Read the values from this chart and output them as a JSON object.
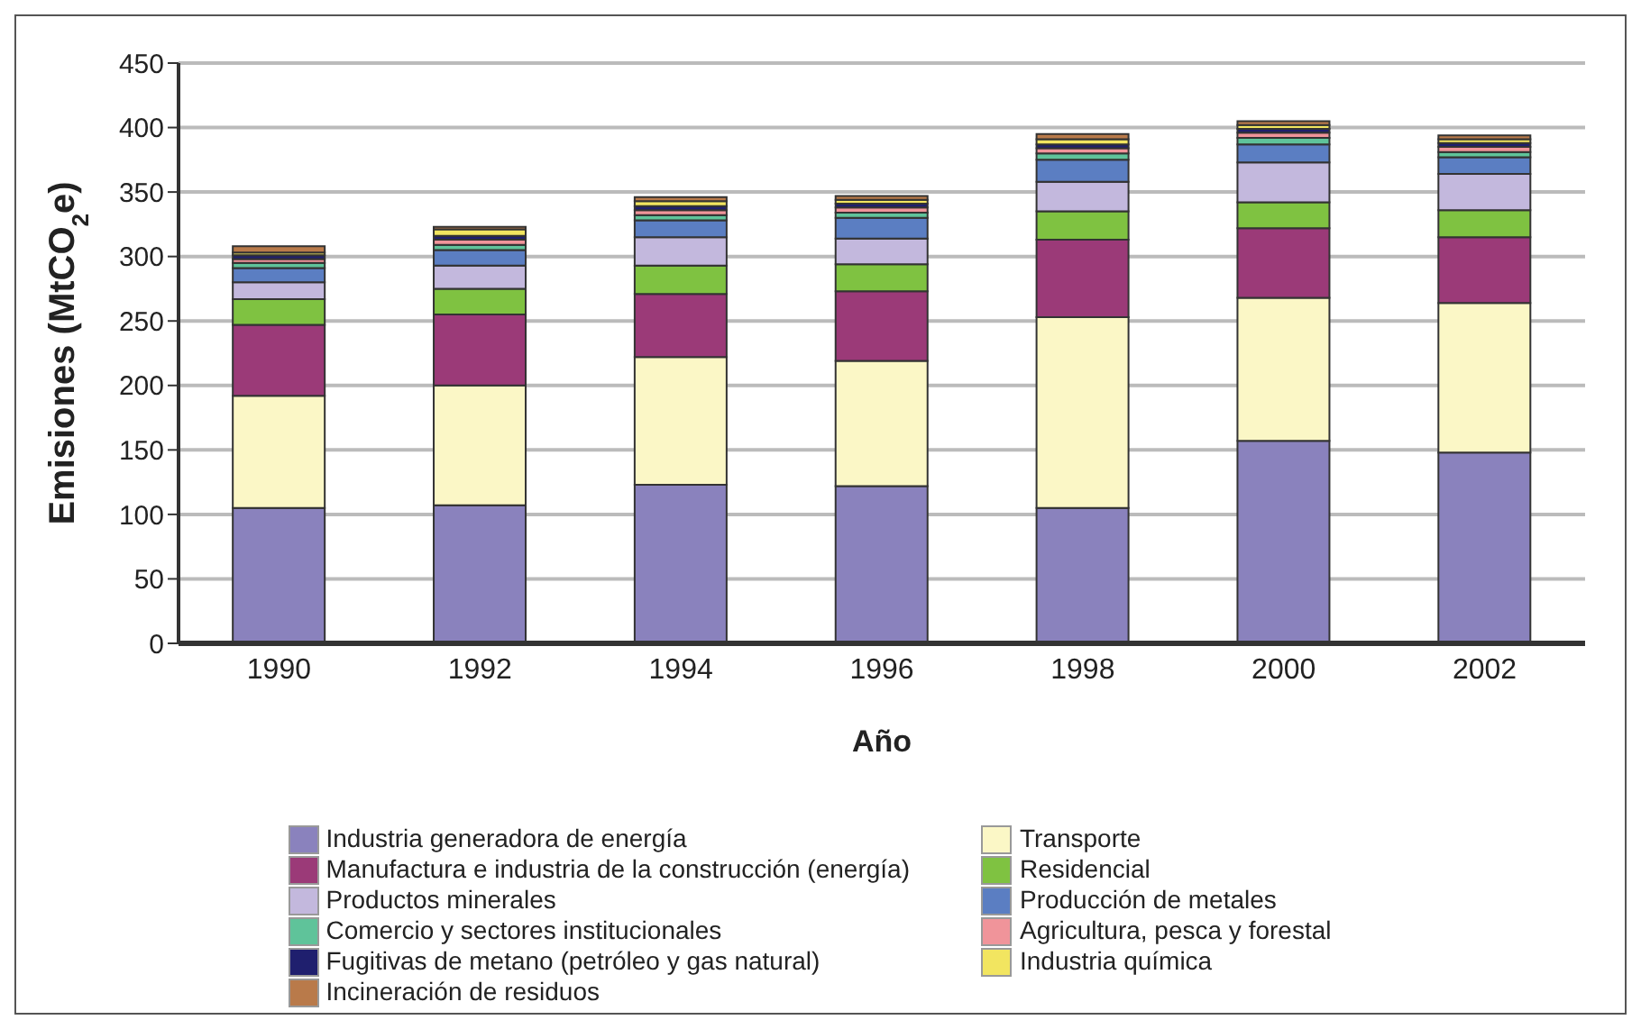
{
  "chart_data": {
    "type": "bar",
    "stacked": true,
    "xlabel": "Año",
    "ylabel": "Emisiones (MtCO$_{2}$e)",
    "categories": [
      "1990",
      "1992",
      "1994",
      "1996",
      "1998",
      "2000",
      "2002"
    ],
    "ylim": [
      0,
      450
    ],
    "yticks": [
      0,
      50,
      100,
      150,
      200,
      250,
      300,
      350,
      400,
      450
    ],
    "grid": "y",
    "legend": "bottom",
    "series": [
      {
        "name": "Industria generadora de energía",
        "color": "#8a82bd",
        "values": [
          105,
          107,
          123,
          122,
          105,
          157,
          148
        ]
      },
      {
        "name": "Transporte",
        "color": "#fbf7c6",
        "values": [
          87,
          93,
          99,
          97,
          148,
          111,
          116
        ]
      },
      {
        "name": "Manufactura e industria de la construcción (energía)",
        "color": "#9b3a78",
        "values": [
          55,
          55,
          49,
          54,
          60,
          54,
          51
        ]
      },
      {
        "name": "Residencial",
        "color": "#7fc241",
        "values": [
          20,
          20,
          22,
          21,
          22,
          20,
          21
        ]
      },
      {
        "name": "Productos minerales",
        "color": "#c3b8dd",
        "values": [
          13,
          18,
          22,
          20,
          23,
          31,
          28
        ]
      },
      {
        "name": "Producción de metales",
        "color": "#5b7ec2",
        "values": [
          11,
          12,
          13,
          16,
          17,
          14,
          13
        ]
      },
      {
        "name": "Comercio y sectores institucionales",
        "color": "#5fc39a",
        "values": [
          4,
          4,
          4,
          4,
          5,
          5,
          4
        ]
      },
      {
        "name": "Agricultura, pesca y forestal",
        "color": "#f0949a",
        "values": [
          3,
          4,
          4,
          4,
          4,
          4,
          4
        ]
      },
      {
        "name": "Fugitivas de metano (petróleo y gas natural)",
        "color": "#1f1f6e",
        "values": [
          3,
          3,
          3,
          3,
          3,
          3,
          3
        ]
      },
      {
        "name": "Industria química",
        "color": "#f2e560",
        "values": [
          2,
          5,
          4,
          3,
          4,
          3,
          3
        ]
      },
      {
        "name": "Incineración de residuos",
        "color": "#b97a4a",
        "values": [
          5,
          2,
          3,
          3,
          4,
          3,
          3
        ]
      }
    ]
  }
}
